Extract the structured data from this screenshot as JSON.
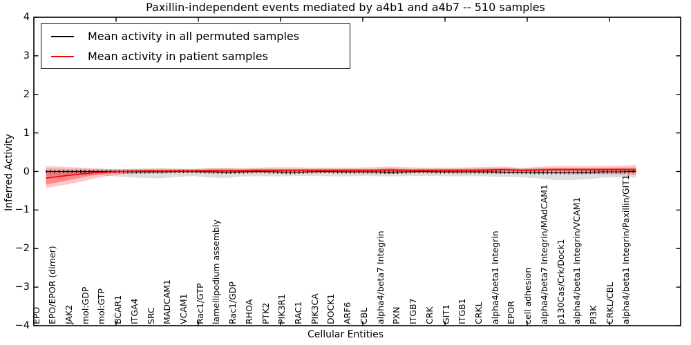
{
  "chart_data": {
    "type": "line",
    "title": "Paxillin-independent events mediated by a4b1 and a4b7 -- 510 samples",
    "xlabel": "Cellular Entities",
    "ylabel": "Inferred Activity",
    "ylim": [
      -4,
      4
    ],
    "ytick_labels": [
      "4",
      "3",
      "2",
      "1",
      "0",
      "−1",
      "−2",
      "−3",
      "−4"
    ],
    "ytick_values": [
      4,
      3,
      2,
      1,
      0,
      -1,
      -2,
      -3,
      -4
    ],
    "grid": false,
    "legend_position": "upper left",
    "categories": [
      "EPO",
      "EPO/EPOR (dimer)",
      "JAK2",
      "mol:GDP",
      "mol:GTP",
      "BCAR1",
      "ITGA4",
      "SRC",
      "MADCAM1",
      "VCAM1",
      "Rac1/GTP",
      "lamellipodium assembly",
      "Rac1/GDP",
      "RHOA",
      "PTK2",
      "PIK3R1",
      "RAC1",
      "PIK3CA",
      "DOCK1",
      "ARF6",
      "CBL",
      "alpha4/beta7 Integrin",
      "PXN",
      "ITGB7",
      "CRK",
      "GIT1",
      "ITGB1",
      "CRKL",
      "alpha4/beta1 Integrin",
      "EPOR",
      "cell adhesion",
      "alpha4/beta7 Integrin/MAdCAM1",
      "p130Cas/Crk/Dock1",
      "alpha4/beta1 Integrin/VCAM1",
      "PI3K",
      "CRKL/CBL",
      "alpha4/beta1 Integrin/Paxillin/GIT1"
    ],
    "series": [
      {
        "name": "Mean activity in all permuted samples",
        "color": "#000000",
        "values": [
          0,
          0,
          0,
          0,
          0,
          -0.01,
          -0.01,
          -0.01,
          0,
          0,
          -0.01,
          -0.02,
          -0.01,
          0,
          -0.01,
          -0.03,
          -0.01,
          0,
          -0.01,
          -0.01,
          -0.01,
          -0.02,
          -0.01,
          0,
          -0.01,
          -0.01,
          -0.01,
          -0.01,
          -0.02,
          -0.02,
          -0.03,
          -0.03,
          -0.03,
          -0.02,
          -0.01,
          -0.01,
          0
        ]
      },
      {
        "name": "Mean activity in patient samples",
        "color": "#ff0000",
        "values": [
          -0.17,
          -0.12,
          -0.07,
          -0.03,
          -0.01,
          0,
          0.01,
          0.01,
          0.01,
          0.01,
          0.02,
          0.02,
          0.02,
          0.03,
          0.03,
          0.03,
          0.03,
          0.03,
          0.03,
          0.03,
          0.03,
          0.04,
          0.03,
          0.03,
          0.03,
          0.03,
          0.03,
          0.04,
          0.05,
          0.03,
          0.04,
          0.05,
          0.05,
          0.05,
          0.05,
          0.05,
          0.04
        ]
      }
    ],
    "bands": [
      {
        "name": "permuted-samples-range",
        "color": "rgba(0,0,0,0.13)",
        "upper": [
          0.08,
          0.07,
          0.07,
          0.06,
          0.06,
          0.07,
          0.07,
          0.07,
          0.07,
          0.07,
          0.08,
          0.08,
          0.07,
          0.07,
          0.07,
          0.07,
          0.07,
          0.07,
          0.07,
          0.07,
          0.07,
          0.07,
          0.07,
          0.07,
          0.07,
          0.07,
          0.07,
          0.08,
          0.08,
          0.08,
          0.08,
          0.09,
          0.09,
          0.09,
          0.09,
          0.1,
          0.1
        ],
        "lower": [
          -0.1,
          -0.12,
          -0.1,
          -0.09,
          -0.12,
          -0.15,
          -0.17,
          -0.18,
          -0.14,
          -0.12,
          -0.16,
          -0.17,
          -0.13,
          -0.12,
          -0.13,
          -0.12,
          -0.12,
          -0.12,
          -0.13,
          -0.12,
          -0.12,
          -0.13,
          -0.12,
          -0.12,
          -0.12,
          -0.13,
          -0.12,
          -0.13,
          -0.14,
          -0.15,
          -0.18,
          -0.22,
          -0.23,
          -0.2,
          -0.16,
          -0.15,
          -0.16
        ]
      },
      {
        "name": "patient-samples-range-outer",
        "color": "rgba(255,0,0,0.22)",
        "upper": [
          0.14,
          0.12,
          0.1,
          0.08,
          0.06,
          0.06,
          0.07,
          0.08,
          0.07,
          0.06,
          0.08,
          0.09,
          0.08,
          0.1,
          0.11,
          0.11,
          0.1,
          0.1,
          0.1,
          0.1,
          0.11,
          0.13,
          0.11,
          0.1,
          0.1,
          0.1,
          0.11,
          0.12,
          0.13,
          0.09,
          0.12,
          0.14,
          0.14,
          0.14,
          0.14,
          0.15,
          0.17
        ],
        "lower": [
          -0.43,
          -0.36,
          -0.28,
          -0.18,
          -0.1,
          -0.06,
          -0.05,
          -0.05,
          -0.04,
          -0.04,
          -0.05,
          -0.05,
          -0.04,
          -0.04,
          -0.05,
          -0.04,
          -0.04,
          -0.04,
          -0.04,
          -0.05,
          -0.05,
          -0.06,
          -0.05,
          -0.04,
          -0.04,
          -0.05,
          -0.05,
          -0.05,
          -0.05,
          -0.05,
          -0.06,
          -0.06,
          -0.07,
          -0.07,
          -0.07,
          -0.08,
          -0.1
        ]
      },
      {
        "name": "patient-samples-range-inner",
        "color": "rgba(255,0,0,0.32)",
        "upper": [
          -0.02,
          -0.02,
          -0.01,
          0.01,
          0.02,
          0.03,
          0.04,
          0.04,
          0.04,
          0.04,
          0.05,
          0.05,
          0.05,
          0.06,
          0.06,
          0.06,
          0.06,
          0.06,
          0.06,
          0.06,
          0.06,
          0.08,
          0.06,
          0.06,
          0.06,
          0.06,
          0.07,
          0.07,
          0.08,
          0.06,
          0.07,
          0.08,
          0.08,
          0.08,
          0.08,
          0.09,
          0.1
        ],
        "lower": [
          -0.34,
          -0.26,
          -0.17,
          -0.09,
          -0.04,
          -0.03,
          -0.02,
          -0.02,
          -0.02,
          -0.02,
          -0.02,
          -0.02,
          -0.01,
          0,
          -0.01,
          -0.01,
          0,
          0,
          0,
          -0.01,
          -0.01,
          -0.01,
          -0.01,
          0,
          0,
          -0.01,
          -0.01,
          -0.01,
          0.01,
          0,
          0,
          0.01,
          0.01,
          0.01,
          0.01,
          0.01,
          -0.02
        ]
      }
    ]
  }
}
